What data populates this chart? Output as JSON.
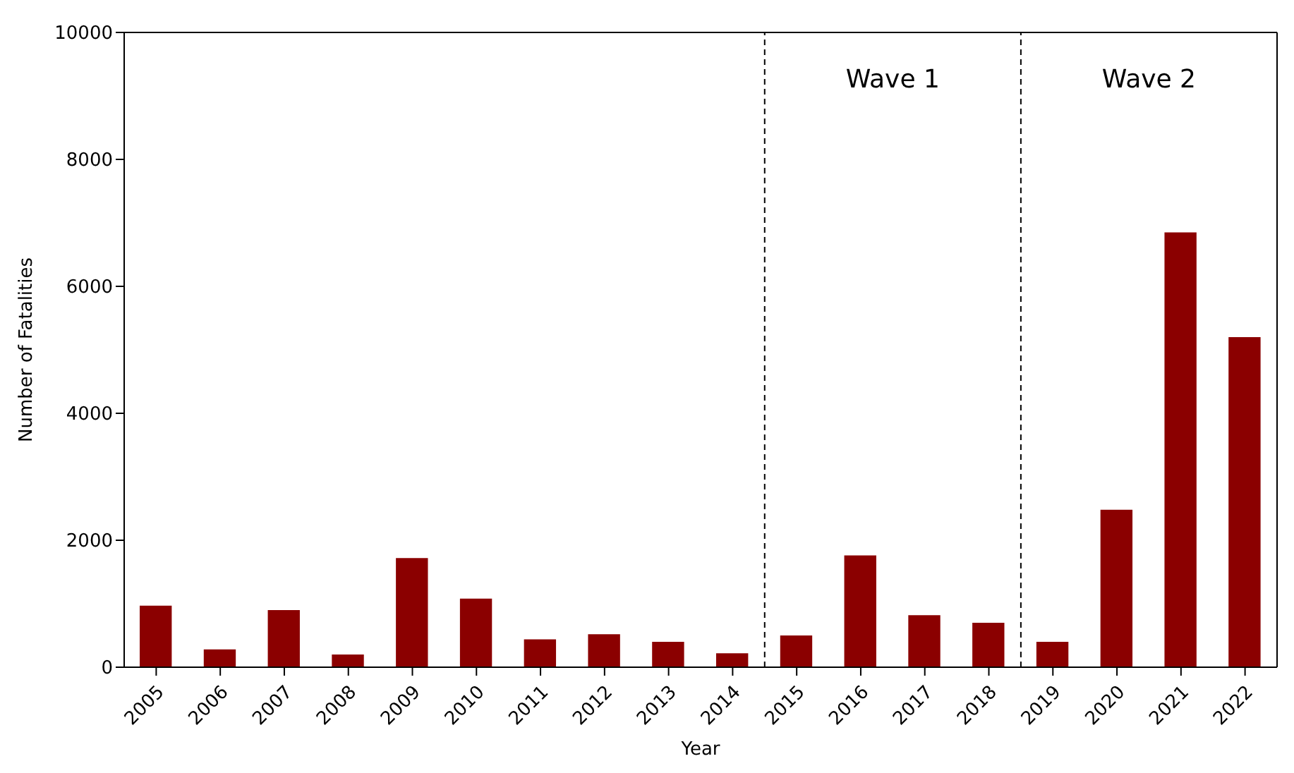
{
  "chart_data": {
    "type": "bar",
    "xlabel": "Year",
    "ylabel": "Number of Fatalities",
    "x": [
      2005,
      2006,
      2007,
      2008,
      2009,
      2010,
      2011,
      2012,
      2013,
      2014,
      2015,
      2016,
      2017,
      2018,
      2019,
      2020,
      2021,
      2022
    ],
    "values": [
      970,
      280,
      900,
      200,
      1720,
      1080,
      440,
      520,
      400,
      220,
      500,
      1760,
      820,
      700,
      400,
      2480,
      6850,
      5200
    ],
    "color": "#8b0000",
    "xlim": [
      2004.5,
      2022.5
    ],
    "xticks": [
      2005,
      2006,
      2007,
      2008,
      2009,
      2010,
      2011,
      2012,
      2013,
      2014,
      2015,
      2016,
      2017,
      2018,
      2019,
      2020,
      2021,
      2022
    ],
    "ylim": [
      0,
      10000
    ],
    "yticks": [
      0,
      2000,
      4000,
      6000,
      8000,
      10000
    ],
    "ref_lines": [
      {
        "axis": "x",
        "value": 2014.5,
        "color": "#000000",
        "line_style": "dashed"
      },
      {
        "axis": "x",
        "value": 2018.5,
        "color": "#000000",
        "line_style": "dashed"
      }
    ],
    "annotations": [
      "Wave 1",
      "Wave 2"
    ],
    "grid": false
  }
}
